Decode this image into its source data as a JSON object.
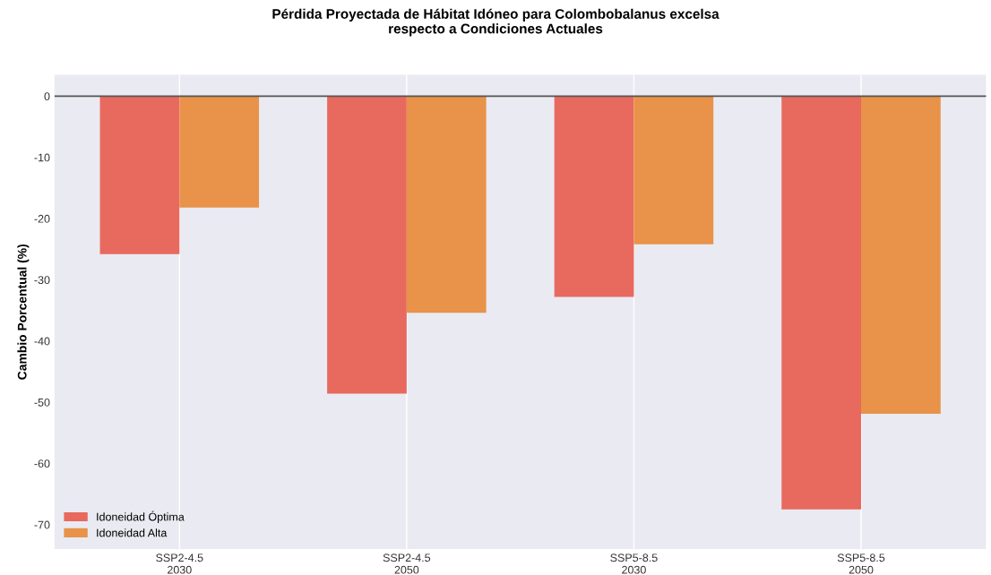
{
  "chart_data": {
    "type": "bar",
    "title": "Pérdida Proyectada de Hábitat Idóneo para Colombobalanus excelsa\nrespecto a Condiciones Actuales",
    "ylabel": "Cambio Porcentual (%)",
    "categories": [
      "SSP2-4.5\n2030",
      "SSP2-4.5\n2050",
      "SSP5-8.5\n2030",
      "SSP5-8.5\n2050"
    ],
    "series": [
      {
        "name": "Idoneidad Óptima",
        "color": "#e8695e",
        "values": [
          -25.8,
          -48.6,
          -32.8,
          -67.5
        ]
      },
      {
        "name": "Idoneidad Alta",
        "color": "#e89349",
        "values": [
          -18.2,
          -35.4,
          -24.2,
          -51.9
        ]
      }
    ],
    "ylim": [
      -74,
      3.5
    ],
    "yticks": [
      0,
      -10,
      -20,
      -30,
      -40,
      -50,
      -60,
      -70
    ],
    "ref_lines": [
      {
        "axis": "y",
        "value": 0,
        "color": "#555555"
      }
    ],
    "grid": "x",
    "legend": "bottom left"
  }
}
